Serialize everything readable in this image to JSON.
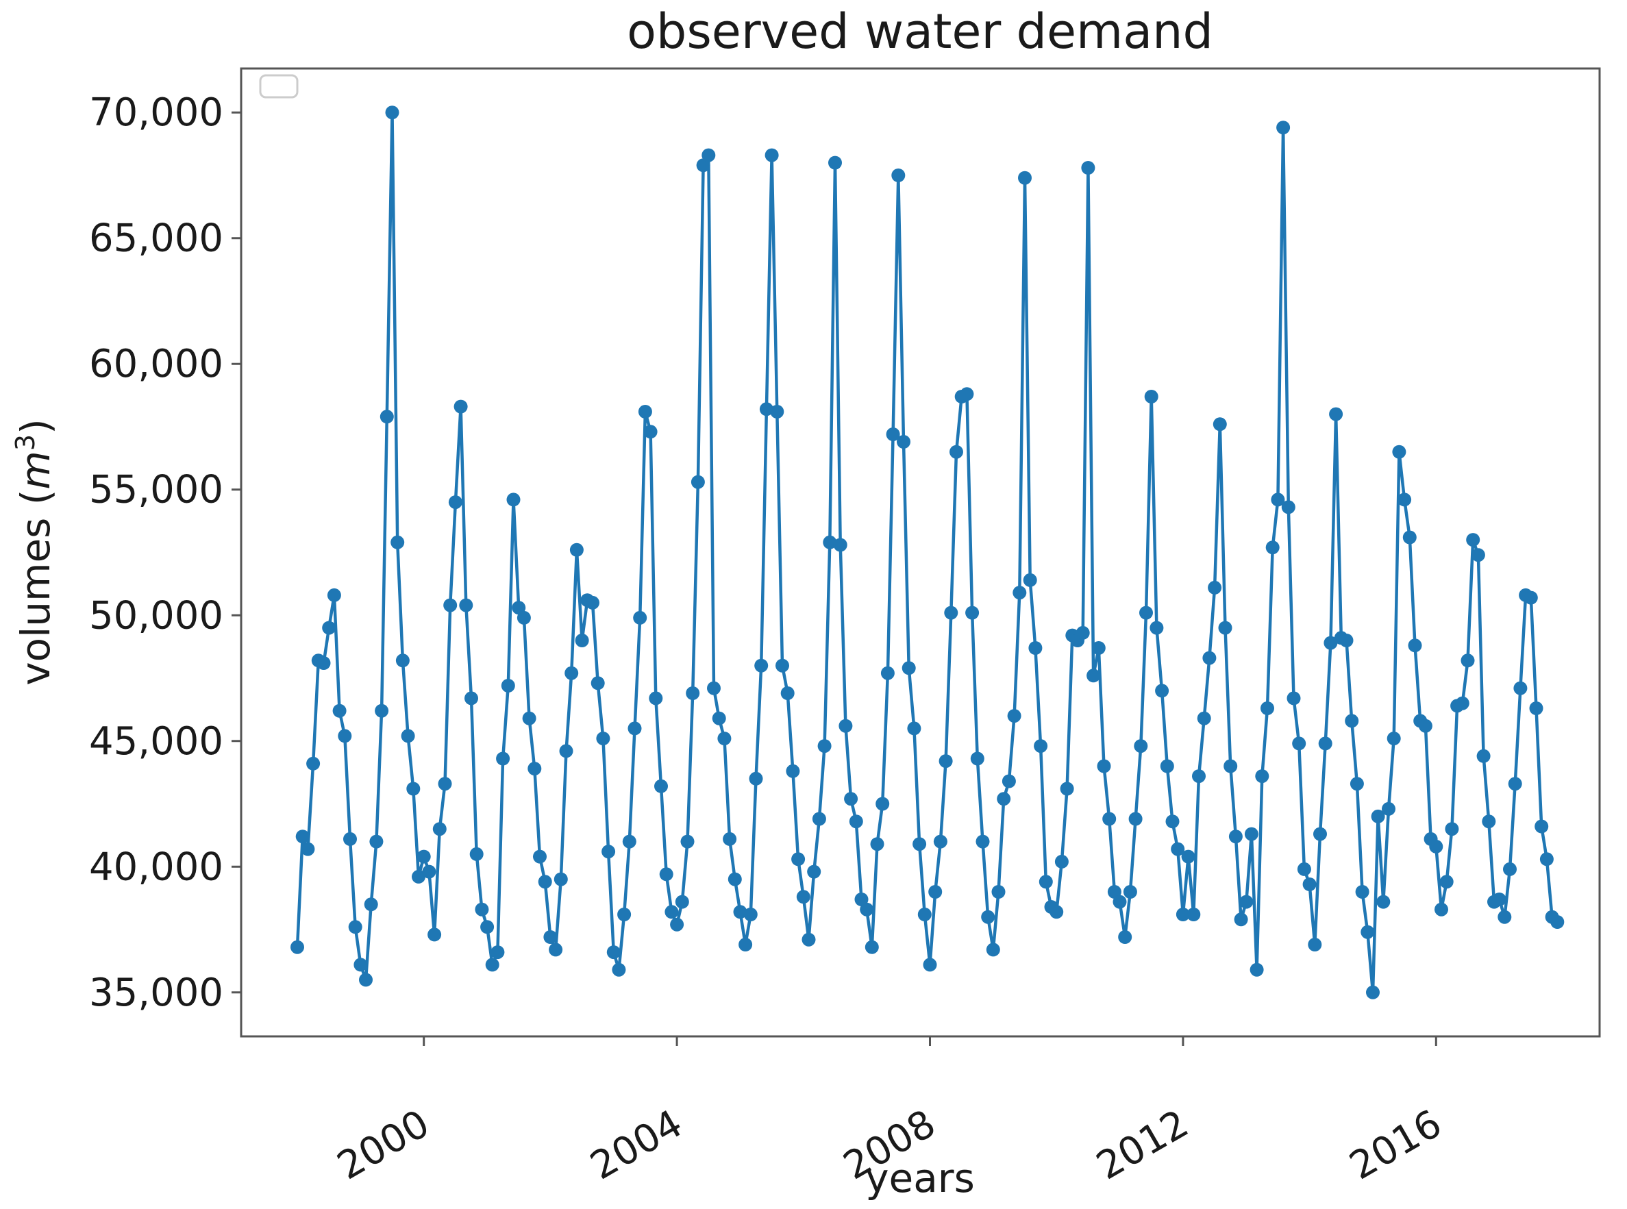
{
  "title": "observed water demand",
  "axes": {
    "xlabel": "years",
    "ylabel_prefix": "volumes (",
    "ylabel_math_symbol": "m",
    "ylabel_exponent": "3",
    "ylabel_suffix": ")"
  },
  "legend": {
    "visible": true,
    "entries": []
  },
  "chart_data": {
    "type": "line",
    "title": "observed water demand",
    "xlabel": "years",
    "ylabel": "volumes (m3)",
    "series_name": "observed water demand",
    "line_color": "#1f77b4",
    "marker": "o",
    "grid": false,
    "legend_position": "upper left (empty box)",
    "x_start_year": 1998,
    "x_step_months": 1,
    "xlim": [
      1997.35,
      2018.75
    ],
    "ylim": [
      33250,
      71750
    ],
    "xticks": [
      2000,
      2004,
      2008,
      2012,
      2016
    ],
    "xtick_labels": [
      "2000",
      "2004",
      "2008",
      "2012",
      "2016"
    ],
    "yticks": [
      35000,
      40000,
      45000,
      50000,
      55000,
      60000,
      65000,
      70000
    ],
    "ytick_labels": [
      "35,000",
      "40,000",
      "45,000",
      "50,000",
      "55,000",
      "60,000",
      "65,000",
      "70,000"
    ],
    "values": [
      36800,
      41200,
      40700,
      44100,
      48200,
      48100,
      49500,
      50800,
      46200,
      45200,
      41100,
      37600,
      36100,
      35500,
      38500,
      41000,
      46200,
      57900,
      70000,
      52900,
      48200,
      45200,
      43100,
      39600,
      40400,
      39800,
      37300,
      41500,
      43300,
      50400,
      54500,
      58300,
      50400,
      46700,
      40500,
      38300,
      37600,
      36100,
      36600,
      44300,
      47200,
      54600,
      50300,
      49900,
      45900,
      43900,
      40400,
      39400,
      37200,
      36700,
      39500,
      44600,
      47700,
      52600,
      49000,
      50600,
      50500,
      47300,
      45100,
      40600,
      36600,
      35900,
      38100,
      41000,
      45500,
      49900,
      58100,
      57300,
      46700,
      43200,
      39700,
      38200,
      37700,
      38600,
      41000,
      46900,
      55300,
      67900,
      68300,
      47100,
      45900,
      45100,
      41100,
      39500,
      38200,
      36900,
      38100,
      43500,
      48000,
      58200,
      68300,
      58100,
      48000,
      46900,
      43800,
      40300,
      38800,
      37100,
      39800,
      41900,
      44800,
      52900,
      68000,
      52800,
      45600,
      42700,
      41800,
      38700,
      38300,
      36800,
      40900,
      42500,
      47700,
      57200,
      67500,
      56900,
      47900,
      45500,
      40900,
      38100,
      36100,
      39000,
      41000,
      44200,
      50100,
      56500,
      58700,
      58800,
      50100,
      44300,
      41000,
      38000,
      36700,
      39000,
      42700,
      43400,
      46000,
      50900,
      67400,
      51400,
      48700,
      44800,
      39400,
      38400,
      38200,
      40200,
      43100,
      49200,
      49000,
      49300,
      67800,
      47600,
      48700,
      44000,
      41900,
      39000,
      38600,
      37200,
      39000,
      41900,
      44800,
      50100,
      58700,
      49500,
      47000,
      44000,
      41800,
      40700,
      38100,
      40400,
      38100,
      43600,
      45900,
      48300,
      51100,
      57600,
      49500,
      44000,
      41200,
      37900,
      38600,
      41300,
      35900,
      43600,
      46300,
      52700,
      54600,
      69400,
      54300,
      46700,
      44900,
      39900,
      39300,
      36900,
      41300,
      44900,
      48900,
      58000,
      49100,
      49000,
      45800,
      43300,
      39000,
      37400,
      35000,
      42000,
      38600,
      42300,
      45100,
      56500,
      54600,
      53100,
      48800,
      45800,
      45600,
      41100,
      40800,
      38300,
      39400,
      41500,
      46400,
      46500,
      48200,
      53000,
      52400,
      44400,
      41800,
      38600,
      38700,
      38000,
      39900,
      43300,
      47100,
      50800,
      50700,
      46300,
      41600,
      40300,
      38000,
      37800
    ]
  }
}
